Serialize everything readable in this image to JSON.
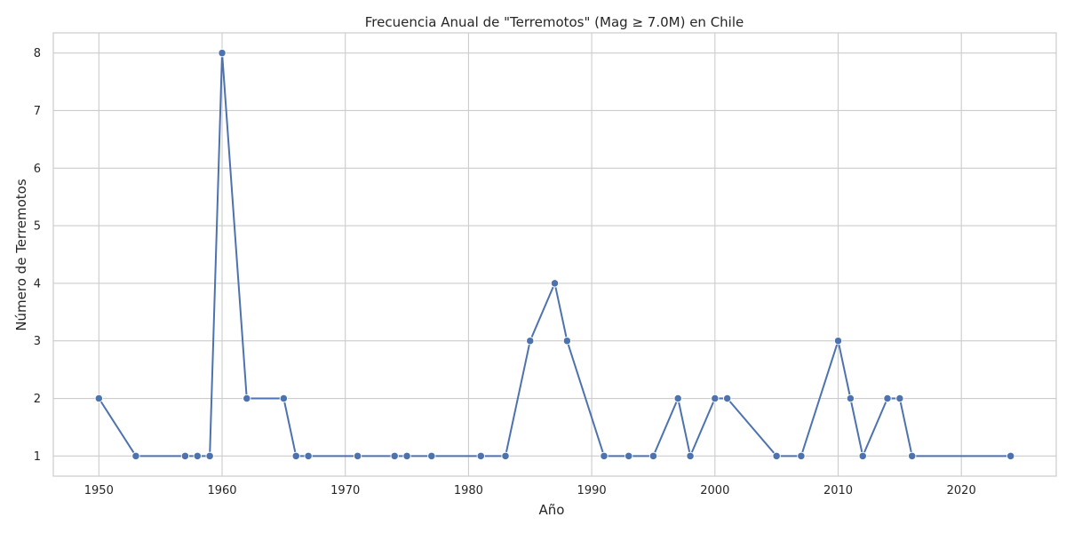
{
  "chart_data": {
    "type": "line",
    "title": "Frecuencia Anual de \"Terremotos\" (Mag ≥ 7.0M) en Chile",
    "xlabel": "Año",
    "ylabel": "Número de Terremotos",
    "xlim": [
      1946.3,
      2027.7
    ],
    "ylim": [
      0.65,
      8.35
    ],
    "x_ticks": [
      1950,
      1960,
      1970,
      1980,
      1990,
      2000,
      2010,
      2020
    ],
    "y_ticks": [
      1,
      2,
      3,
      4,
      5,
      6,
      7,
      8
    ],
    "grid": true,
    "legend": "none",
    "series": [
      {
        "color": "#4c72b0",
        "marker": "circle",
        "x": [
          1950,
          1953,
          1957,
          1958,
          1959,
          1960,
          1962,
          1965,
          1966,
          1967,
          1971,
          1974,
          1975,
          1977,
          1981,
          1983,
          1985,
          1987,
          1988,
          1991,
          1993,
          1995,
          1997,
          1998,
          2000,
          2001,
          2005,
          2007,
          2010,
          2011,
          2012,
          2014,
          2015,
          2016,
          2024
        ],
        "y": [
          2,
          1,
          1,
          1,
          1,
          8,
          2,
          2,
          1,
          1,
          1,
          1,
          1,
          1,
          1,
          1,
          3,
          4,
          3,
          1,
          1,
          1,
          2,
          1,
          2,
          2,
          1,
          1,
          3,
          2,
          1,
          2,
          2,
          1,
          1
        ]
      }
    ]
  }
}
